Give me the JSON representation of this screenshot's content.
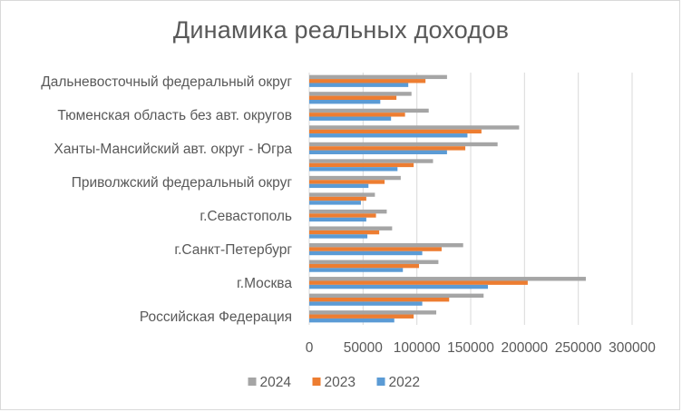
{
  "chart_data": {
    "type": "bar",
    "orientation": "horizontal",
    "title": "Динамика реальных доходов",
    "categories": [
      "Российская Федерация",
      "",
      "г.Москва",
      "",
      "г.Санкт-Петербург",
      "",
      "г.Севастополь",
      "",
      "Приволжский федеральный округ",
      "",
      "Ханты-Мансийский  авт. округ - Югра",
      "",
      "Тюменская область без авт. округов",
      "",
      "Дальневосточный федеральный округ"
    ],
    "series": [
      {
        "name": "2022",
        "color": "#5b9bd5",
        "values": [
          79000,
          105000,
          166000,
          87000,
          105000,
          54000,
          53000,
          48000,
          55000,
          82000,
          128000,
          147000,
          76000,
          66000,
          92000
        ]
      },
      {
        "name": "2023",
        "color": "#ed7d31",
        "values": [
          97000,
          130000,
          203000,
          102000,
          123000,
          65000,
          62000,
          53000,
          70000,
          97000,
          145000,
          160000,
          89000,
          81000,
          108000
        ]
      },
      {
        "name": "2024",
        "color": "#a5a5a5",
        "values": [
          118000,
          162000,
          257000,
          120000,
          143000,
          77000,
          72000,
          61000,
          85000,
          115000,
          175000,
          195000,
          111000,
          95000,
          128000
        ]
      }
    ],
    "xlim": [
      0,
      300000
    ],
    "xticks": [
      0,
      50000,
      100000,
      150000,
      200000,
      250000,
      300000
    ],
    "xtick_labels": [
      "0",
      "50000",
      "100000",
      "150000",
      "200000",
      "250000",
      "300000"
    ],
    "grid": true,
    "legend_position": "bottom",
    "legend_order": [
      "2024",
      "2023",
      "2022"
    ],
    "xlabel": "",
    "ylabel": ""
  }
}
